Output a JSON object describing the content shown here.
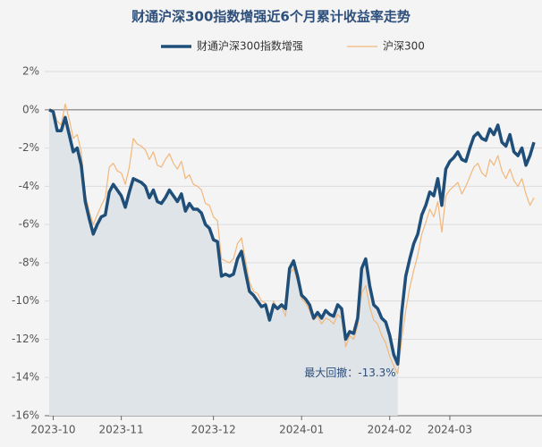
{
  "chart_data": {
    "type": "line",
    "title": "财通沪深300指数增强近6个月累计收益率走势",
    "legend": "top",
    "grid": true,
    "x": [
      0,
      1,
      2,
      3,
      4,
      5,
      6,
      7,
      8,
      9,
      10,
      11,
      12,
      13,
      14,
      15,
      16,
      17,
      18,
      19,
      20,
      21,
      22,
      23,
      24,
      25,
      26,
      27,
      28,
      29,
      30,
      31,
      32,
      33,
      34,
      35,
      36,
      37,
      38,
      39,
      40,
      41,
      42,
      43,
      44,
      45,
      46,
      47,
      48,
      49,
      50,
      51,
      52,
      53,
      54,
      55,
      56,
      57,
      58,
      59,
      60,
      61,
      62,
      63,
      64,
      65,
      66,
      67,
      68,
      69,
      70,
      71,
      72,
      73,
      74,
      75,
      76,
      77,
      78,
      79,
      80,
      81,
      82,
      83,
      84,
      85,
      86,
      87,
      88,
      89,
      90,
      91,
      92,
      93,
      94,
      95,
      96,
      97,
      98,
      99,
      100,
      101,
      102,
      103,
      104,
      105,
      106,
      107,
      108,
      109,
      110,
      111,
      112,
      113,
      114,
      115,
      116,
      117,
      118,
      119,
      120,
      121
    ],
    "xlim": [
      0,
      121
    ],
    "xticks": [
      {
        "value": 1,
        "label": "2023-10"
      },
      {
        "value": 18,
        "label": "2023-11"
      },
      {
        "value": 41,
        "label": "2023-12"
      },
      {
        "value": 63,
        "label": "2024-01"
      },
      {
        "value": 85,
        "label": "2024-02"
      },
      {
        "value": 100,
        "label": "2024-03"
      }
    ],
    "ylim": [
      -16,
      2
    ],
    "yticks": [
      {
        "value": -16,
        "label": "-16%"
      },
      {
        "value": -14,
        "label": "-14%"
      },
      {
        "value": -12,
        "label": "-12%"
      },
      {
        "value": -10,
        "label": "-10%"
      },
      {
        "value": -8,
        "label": "-8%"
      },
      {
        "value": -6,
        "label": "-6%"
      },
      {
        "value": -4,
        "label": "-4%"
      },
      {
        "value": -2,
        "label": "-2%"
      },
      {
        "value": 0,
        "label": "0%"
      },
      {
        "value": 2,
        "label": "2%"
      }
    ],
    "annotation": "最大回撤：-13.3%",
    "area_color": "#dfe4e8",
    "series": [
      {
        "name": "财通沪深300指数增强",
        "color": "#1f4e79",
        "width": 3.5,
        "values": [
          0.0,
          -0.1,
          -1.1,
          -1.1,
          -0.4,
          -1.3,
          -2.2,
          -2.0,
          -2.9,
          -4.8,
          -5.7,
          -6.5,
          -6.0,
          -5.6,
          -5.5,
          -4.3,
          -3.9,
          -4.2,
          -4.5,
          -5.1,
          -4.3,
          -3.6,
          -3.7,
          -3.8,
          -4.0,
          -4.6,
          -4.2,
          -4.8,
          -4.9,
          -4.6,
          -4.2,
          -4.5,
          -4.8,
          -4.4,
          -5.3,
          -4.9,
          -5.2,
          -5.2,
          -5.4,
          -6.0,
          -6.2,
          -6.8,
          -6.9,
          -8.7,
          -8.6,
          -8.7,
          -8.6,
          -7.8,
          -7.4,
          -8.5,
          -9.5,
          -9.7,
          -10.0,
          -10.3,
          -10.2,
          -11.0,
          -10.2,
          -10.4,
          -10.2,
          -10.4,
          -8.3,
          -7.9,
          -8.7,
          -9.7,
          -9.9,
          -10.2,
          -10.9,
          -10.6,
          -10.9,
          -10.5,
          -10.7,
          -10.8,
          -10.2,
          -10.4,
          -12.0,
          -11.6,
          -11.7,
          -10.9,
          -8.3,
          -7.8,
          -9.2,
          -10.2,
          -10.4,
          -10.9,
          -11.1,
          -11.8,
          -12.8,
          -13.3,
          -10.6,
          -8.7,
          -7.8,
          -7.0,
          -6.5,
          -5.5,
          -5.0,
          -4.3,
          -4.5,
          -3.6,
          -5.0,
          -3.1,
          -2.7,
          -2.5,
          -2.2,
          -2.6,
          -2.7,
          -2.0,
          -1.4,
          -1.2,
          -1.5,
          -1.6,
          -1.0,
          -1.3,
          -0.8,
          -1.7,
          -1.9,
          -1.3,
          -2.2,
          -2.4,
          -2.0,
          -2.9,
          -2.4,
          -1.7
        ]
      },
      {
        "name": "沪深300",
        "color": "#f2b77a",
        "width": 1.2,
        "values": [
          0.0,
          0.0,
          -0.6,
          -0.8,
          0.3,
          -0.5,
          -1.5,
          -1.3,
          -2.2,
          -4.4,
          -5.3,
          -6.0,
          -5.5,
          -5.0,
          -4.6,
          -3.0,
          -2.8,
          -3.2,
          -3.3,
          -3.9,
          -3.0,
          -1.5,
          -1.8,
          -1.9,
          -2.1,
          -2.6,
          -2.2,
          -2.9,
          -3.0,
          -2.6,
          -2.3,
          -2.8,
          -3.1,
          -2.7,
          -3.6,
          -3.4,
          -3.9,
          -4.0,
          -4.2,
          -4.9,
          -5.0,
          -5.6,
          -5.8,
          -7.8,
          -7.9,
          -8.0,
          -7.8,
          -7.0,
          -6.7,
          -7.9,
          -9.0,
          -9.5,
          -9.6,
          -10.0,
          -10.1,
          -10.8,
          -10.0,
          -10.4,
          -10.3,
          -10.8,
          -8.6,
          -8.3,
          -9.0,
          -9.9,
          -10.1,
          -10.5,
          -11.0,
          -10.8,
          -11.2,
          -10.9,
          -11.0,
          -11.2,
          -10.7,
          -10.9,
          -12.4,
          -11.8,
          -12.0,
          -11.3,
          -9.6,
          -9.2,
          -10.3,
          -11.0,
          -11.2,
          -11.8,
          -12.2,
          -12.9,
          -13.4,
          -13.8,
          -12.0,
          -10.5,
          -9.3,
          -8.4,
          -7.6,
          -6.5,
          -5.9,
          -5.2,
          -5.6,
          -4.8,
          -6.4,
          -4.5,
          -4.2,
          -4.0,
          -3.8,
          -4.4,
          -4.0,
          -3.5,
          -3.0,
          -2.8,
          -3.3,
          -3.5,
          -2.6,
          -2.9,
          -2.4,
          -3.2,
          -3.6,
          -3.1,
          -3.7,
          -4.0,
          -3.6,
          -4.4,
          -5.0,
          -4.6
        ]
      }
    ]
  }
}
